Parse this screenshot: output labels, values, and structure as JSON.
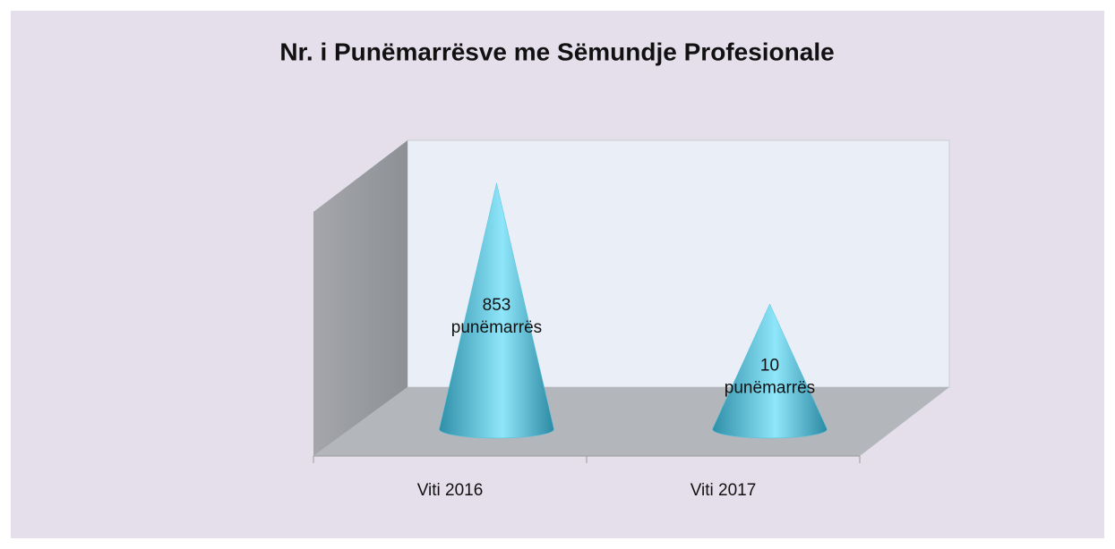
{
  "chart_data": {
    "type": "cone",
    "title": "Nr. i Punëmarrësve me Sëmundje Profesionale",
    "categories": [
      "Viti 2016",
      "Viti 2017"
    ],
    "values": [
      853,
      10
    ],
    "value_labels": [
      "853 punëmarrës",
      "10 punëmarrës"
    ],
    "color": "#4fc3df",
    "log_scale": true,
    "ylim": [
      0.1,
      1000
    ]
  }
}
